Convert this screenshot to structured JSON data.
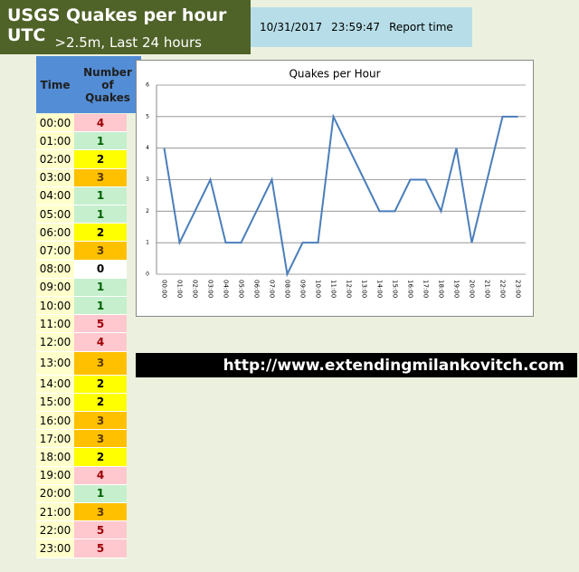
{
  "header": {
    "title": "USGS Quakes per hour UTC",
    "subtitle": ">2.5m, Last 24 hours",
    "report_date": "10/31/2017",
    "report_time": "23:59:47",
    "report_label": "Report time"
  },
  "table": {
    "header": [
      "Time",
      "Number of Quakes"
    ],
    "rows": [
      [
        "00:00",
        4
      ],
      [
        "01:00",
        1
      ],
      [
        "02:00",
        2
      ],
      [
        "03:00",
        3
      ],
      [
        "04:00",
        1
      ],
      [
        "05:00",
        1
      ],
      [
        "06:00",
        2
      ],
      [
        "07:00",
        3
      ],
      [
        "08:00",
        0
      ],
      [
        "09:00",
        1
      ],
      [
        "10:00",
        1
      ],
      [
        "11:00",
        5
      ],
      [
        "12:00",
        4
      ],
      [
        "13:00",
        3
      ],
      [
        "14:00",
        2
      ],
      [
        "15:00",
        2
      ],
      [
        "16:00",
        3
      ],
      [
        "17:00",
        3
      ],
      [
        "18:00",
        2
      ],
      [
        "19:00",
        4
      ],
      [
        "20:00",
        1
      ],
      [
        "21:00",
        3
      ],
      [
        "22:00",
        5
      ],
      [
        "23:00",
        5
      ]
    ]
  },
  "chart_data": {
    "type": "line",
    "title": "Quakes per Hour",
    "categories": [
      "00:00",
      "01:00",
      "02:00",
      "03:00",
      "04:00",
      "05:00",
      "06:00",
      "07:00",
      "08:00",
      "09:00",
      "10:00",
      "11:00",
      "12:00",
      "13:00",
      "14:00",
      "15:00",
      "16:00",
      "17:00",
      "18:00",
      "19:00",
      "20:00",
      "21:00",
      "22:00",
      "23:00"
    ],
    "values": [
      4,
      1,
      2,
      3,
      1,
      1,
      2,
      3,
      0,
      1,
      1,
      5,
      4,
      3,
      2,
      2,
      3,
      3,
      2,
      4,
      1,
      3,
      5,
      5
    ],
    "color": "#4a7ebb",
    "ylim": [
      0,
      6
    ],
    "yticks": [
      0,
      1,
      2,
      3,
      4,
      5,
      6
    ],
    "grid": true
  },
  "url": "http://www.extendingmilankovitch.com"
}
